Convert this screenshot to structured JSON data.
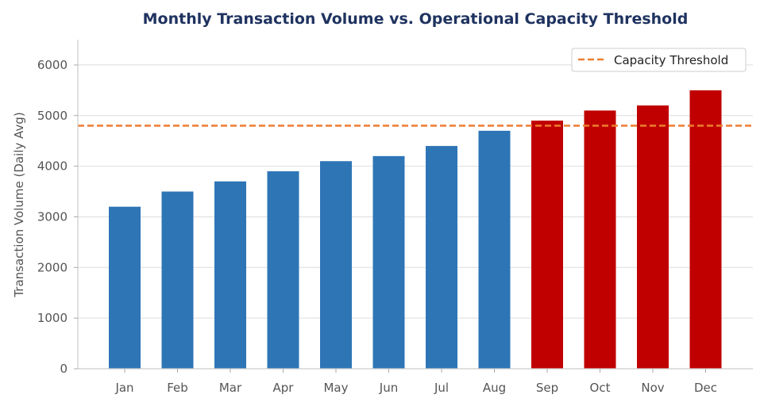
{
  "chart_data": {
    "type": "bar",
    "title": "Monthly Transaction Volume vs. Operational Capacity Threshold",
    "xlabel": "",
    "ylabel": "Transaction Volume (Daily Avg)",
    "categories": [
      "Jan",
      "Feb",
      "Mar",
      "Apr",
      "May",
      "Jun",
      "Jul",
      "Aug",
      "Sep",
      "Oct",
      "Nov",
      "Dec"
    ],
    "values": [
      3200,
      3500,
      3700,
      3900,
      4100,
      4200,
      4400,
      4700,
      4900,
      5100,
      5200,
      5500
    ],
    "ylim": [
      0,
      6500
    ],
    "yticks": [
      0,
      1000,
      2000,
      3000,
      4000,
      5000,
      6000
    ],
    "grid": "horizontal",
    "threshold": {
      "name": "Capacity Threshold",
      "value": 4800,
      "color": "#ed7d31"
    },
    "colors": {
      "normal": "#2e75b6",
      "above_threshold": "#c00000"
    },
    "legend_position": "top-right"
  }
}
